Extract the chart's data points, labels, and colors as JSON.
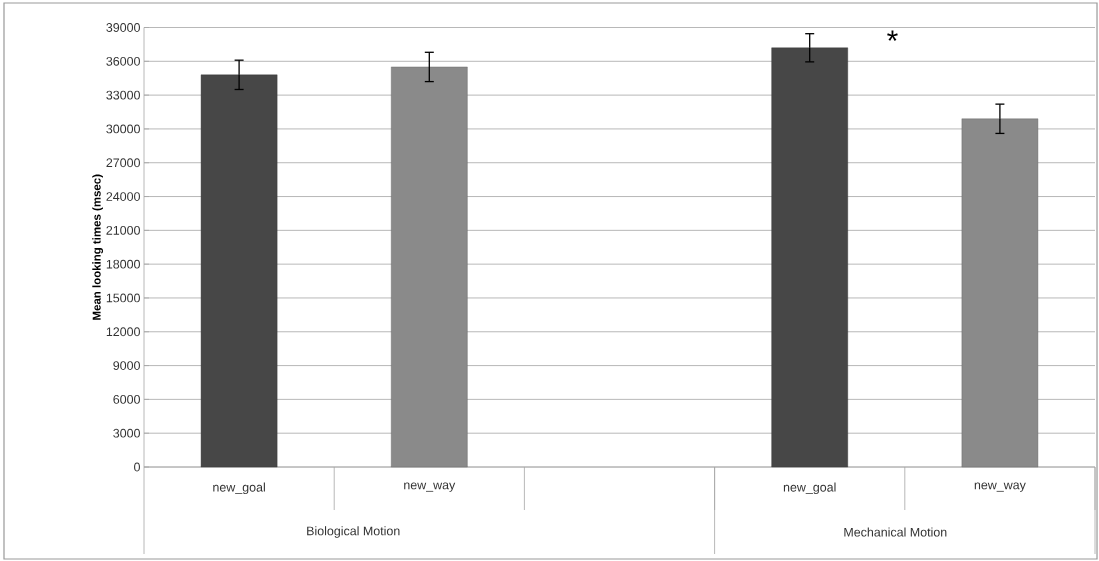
{
  "chart_data": {
    "type": "bar",
    "ylabel": "Mean looking times (msec)",
    "categories": [
      "new_goal",
      "new_way",
      null,
      "new_goal",
      "new_way"
    ],
    "values": [
      34800,
      35500,
      null,
      37200,
      30900
    ],
    "errors": [
      1300,
      1300,
      null,
      1250,
      1300
    ],
    "colors": [
      "#474747",
      "#8a8a8a",
      "#474747",
      "#474747",
      "#8a8a8a"
    ],
    "ylim": [
      0,
      39000
    ],
    "yticks": [
      0,
      3000,
      6000,
      9000,
      12000,
      15000,
      18000,
      21000,
      24000,
      27000,
      30000,
      33000,
      36000,
      39000
    ],
    "grid": "y",
    "annotations": [
      "*",
      "Biological Motion",
      "Mechanical Motion"
    ]
  }
}
